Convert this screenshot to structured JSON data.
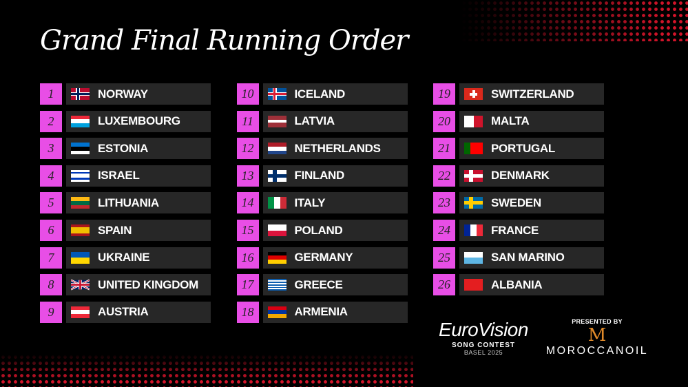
{
  "title": "Grand Final Running Order",
  "entries": [
    {
      "n": "1",
      "country": "NORWAY",
      "flag": {
        "type": "nordic",
        "bg": "#ba0c2f",
        "cross": "#00205b",
        "border": "#ffffff"
      }
    },
    {
      "n": "2",
      "country": "LUXEMBOURG",
      "flag": {
        "type": "h",
        "colors": [
          "#ed2939",
          "#ffffff",
          "#00a1de"
        ]
      }
    },
    {
      "n": "3",
      "country": "ESTONIA",
      "flag": {
        "type": "h",
        "colors": [
          "#0072ce",
          "#000000",
          "#ffffff"
        ]
      }
    },
    {
      "n": "4",
      "country": "ISRAEL",
      "flag": {
        "type": "h",
        "colors": [
          "#ffffff",
          "#0038b8",
          "#ffffff",
          "#ffffff",
          "#0038b8",
          "#ffffff"
        ]
      }
    },
    {
      "n": "5",
      "country": "LITHUANIA",
      "flag": {
        "type": "h",
        "colors": [
          "#fdb913",
          "#006a44",
          "#c1272d"
        ]
      }
    },
    {
      "n": "6",
      "country": "SPAIN",
      "flag": {
        "type": "h",
        "colors": [
          "#aa151b",
          "#f1bf00",
          "#f1bf00",
          "#aa151b"
        ]
      }
    },
    {
      "n": "7",
      "country": "UKRAINE",
      "flag": {
        "type": "h",
        "colors": [
          "#0057b7",
          "#ffd700"
        ]
      }
    },
    {
      "n": "8",
      "country": "UNITED KINGDOM",
      "flag": {
        "type": "uk"
      }
    },
    {
      "n": "9",
      "country": "AUSTRIA",
      "flag": {
        "type": "h",
        "colors": [
          "#ed2939",
          "#ffffff",
          "#ed2939"
        ]
      }
    },
    {
      "n": "10",
      "country": "ICELAND",
      "flag": {
        "type": "nordic",
        "bg": "#02529c",
        "cross": "#dc1e35",
        "border": "#ffffff"
      }
    },
    {
      "n": "11",
      "country": "LATVIA",
      "flag": {
        "type": "h",
        "colors": [
          "#9e3039",
          "#9e3039",
          "#ffffff",
          "#9e3039",
          "#9e3039"
        ]
      }
    },
    {
      "n": "12",
      "country": "NETHERLANDS",
      "flag": {
        "type": "h",
        "colors": [
          "#ae1c28",
          "#ffffff",
          "#21468b"
        ]
      }
    },
    {
      "n": "13",
      "country": "FINLAND",
      "flag": {
        "type": "nordic",
        "bg": "#ffffff",
        "cross": "#002f6c",
        "border": "#002f6c"
      }
    },
    {
      "n": "14",
      "country": "ITALY",
      "flag": {
        "type": "v",
        "colors": [
          "#009246",
          "#ffffff",
          "#ce2b37"
        ]
      }
    },
    {
      "n": "15",
      "country": "POLAND",
      "flag": {
        "type": "h",
        "colors": [
          "#ffffff",
          "#dc143c"
        ]
      }
    },
    {
      "n": "16",
      "country": "GERMANY",
      "flag": {
        "type": "h",
        "colors": [
          "#000000",
          "#dd0000",
          "#ffce00"
        ]
      }
    },
    {
      "n": "17",
      "country": "GREECE",
      "flag": {
        "type": "h",
        "colors": [
          "#0d5eaf",
          "#ffffff",
          "#0d5eaf",
          "#ffffff",
          "#0d5eaf",
          "#ffffff",
          "#0d5eaf",
          "#ffffff",
          "#0d5eaf"
        ]
      }
    },
    {
      "n": "18",
      "country": "ARMENIA",
      "flag": {
        "type": "h",
        "colors": [
          "#d90012",
          "#0033a0",
          "#f2a800"
        ]
      }
    },
    {
      "n": "19",
      "country": "SWITZERLAND",
      "flag": {
        "type": "swiss"
      }
    },
    {
      "n": "20",
      "country": "MALTA",
      "flag": {
        "type": "v",
        "colors": [
          "#ffffff",
          "#cf142b"
        ]
      }
    },
    {
      "n": "21",
      "country": "PORTUGAL",
      "flag": {
        "type": "v",
        "colors": [
          "#006600",
          "#ff0000",
          "#ff0000"
        ]
      }
    },
    {
      "n": "22",
      "country": "DENMARK",
      "flag": {
        "type": "nordic",
        "bg": "#c8102e",
        "cross": "#ffffff",
        "border": "#ffffff"
      }
    },
    {
      "n": "23",
      "country": "SWEDEN",
      "flag": {
        "type": "nordic",
        "bg": "#006aa7",
        "cross": "#fecc00",
        "border": "#fecc00"
      }
    },
    {
      "n": "24",
      "country": "FRANCE",
      "flag": {
        "type": "v",
        "colors": [
          "#002395",
          "#ffffff",
          "#ed2939"
        ]
      }
    },
    {
      "n": "25",
      "country": "SAN MARINO",
      "flag": {
        "type": "h",
        "colors": [
          "#ffffff",
          "#5eb6e4"
        ]
      }
    },
    {
      "n": "26",
      "country": "ALBANIA",
      "flag": {
        "type": "h",
        "colors": [
          "#e41e20"
        ]
      }
    }
  ],
  "eurovision": {
    "word": "EuroVision",
    "sub": "SONG CONTEST",
    "basel": "BASEL 2025"
  },
  "sponsor": {
    "presented": "PRESENTED BY",
    "name": "MOROCCANOIL",
    "mark": "M"
  }
}
